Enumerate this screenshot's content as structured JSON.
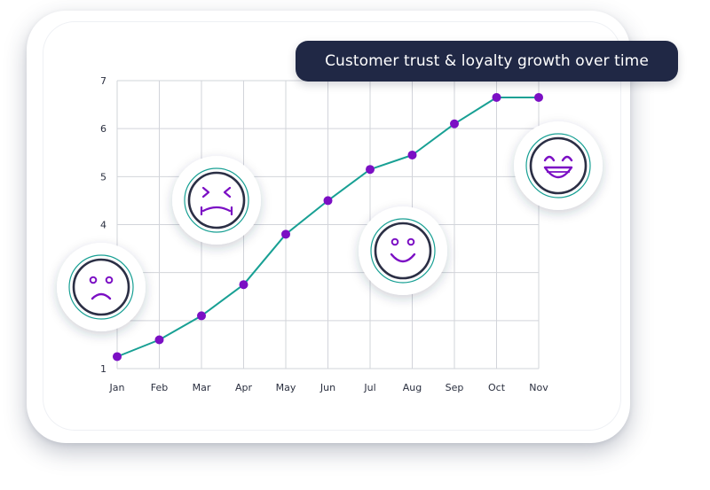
{
  "chart_data": {
    "type": "line",
    "title": "Customer trust & loyalty growth over time",
    "categories": [
      "Jan",
      "Feb",
      "Mar",
      "Apr",
      "May",
      "Jun",
      "Jul",
      "Aug",
      "Sep",
      "Oct",
      "Nov"
    ],
    "series": [
      {
        "values": [
          1.25,
          1.6,
          2.1,
          2.75,
          3.8,
          4.5,
          5.15,
          5.45,
          6.1,
          6.65,
          6.65
        ]
      }
    ],
    "y_ticks": [
      1,
      4,
      5,
      6,
      7
    ],
    "ylim": [
      1,
      7
    ],
    "grid": true,
    "colors": {
      "line": "#18a094",
      "point": "#7b0fc4",
      "grid": "#d2d4da"
    },
    "face_icons": [
      {
        "name": "sad-face-icon"
      },
      {
        "name": "sick-face-icon"
      },
      {
        "name": "smile-face-icon"
      },
      {
        "name": "grin-face-icon"
      }
    ]
  }
}
